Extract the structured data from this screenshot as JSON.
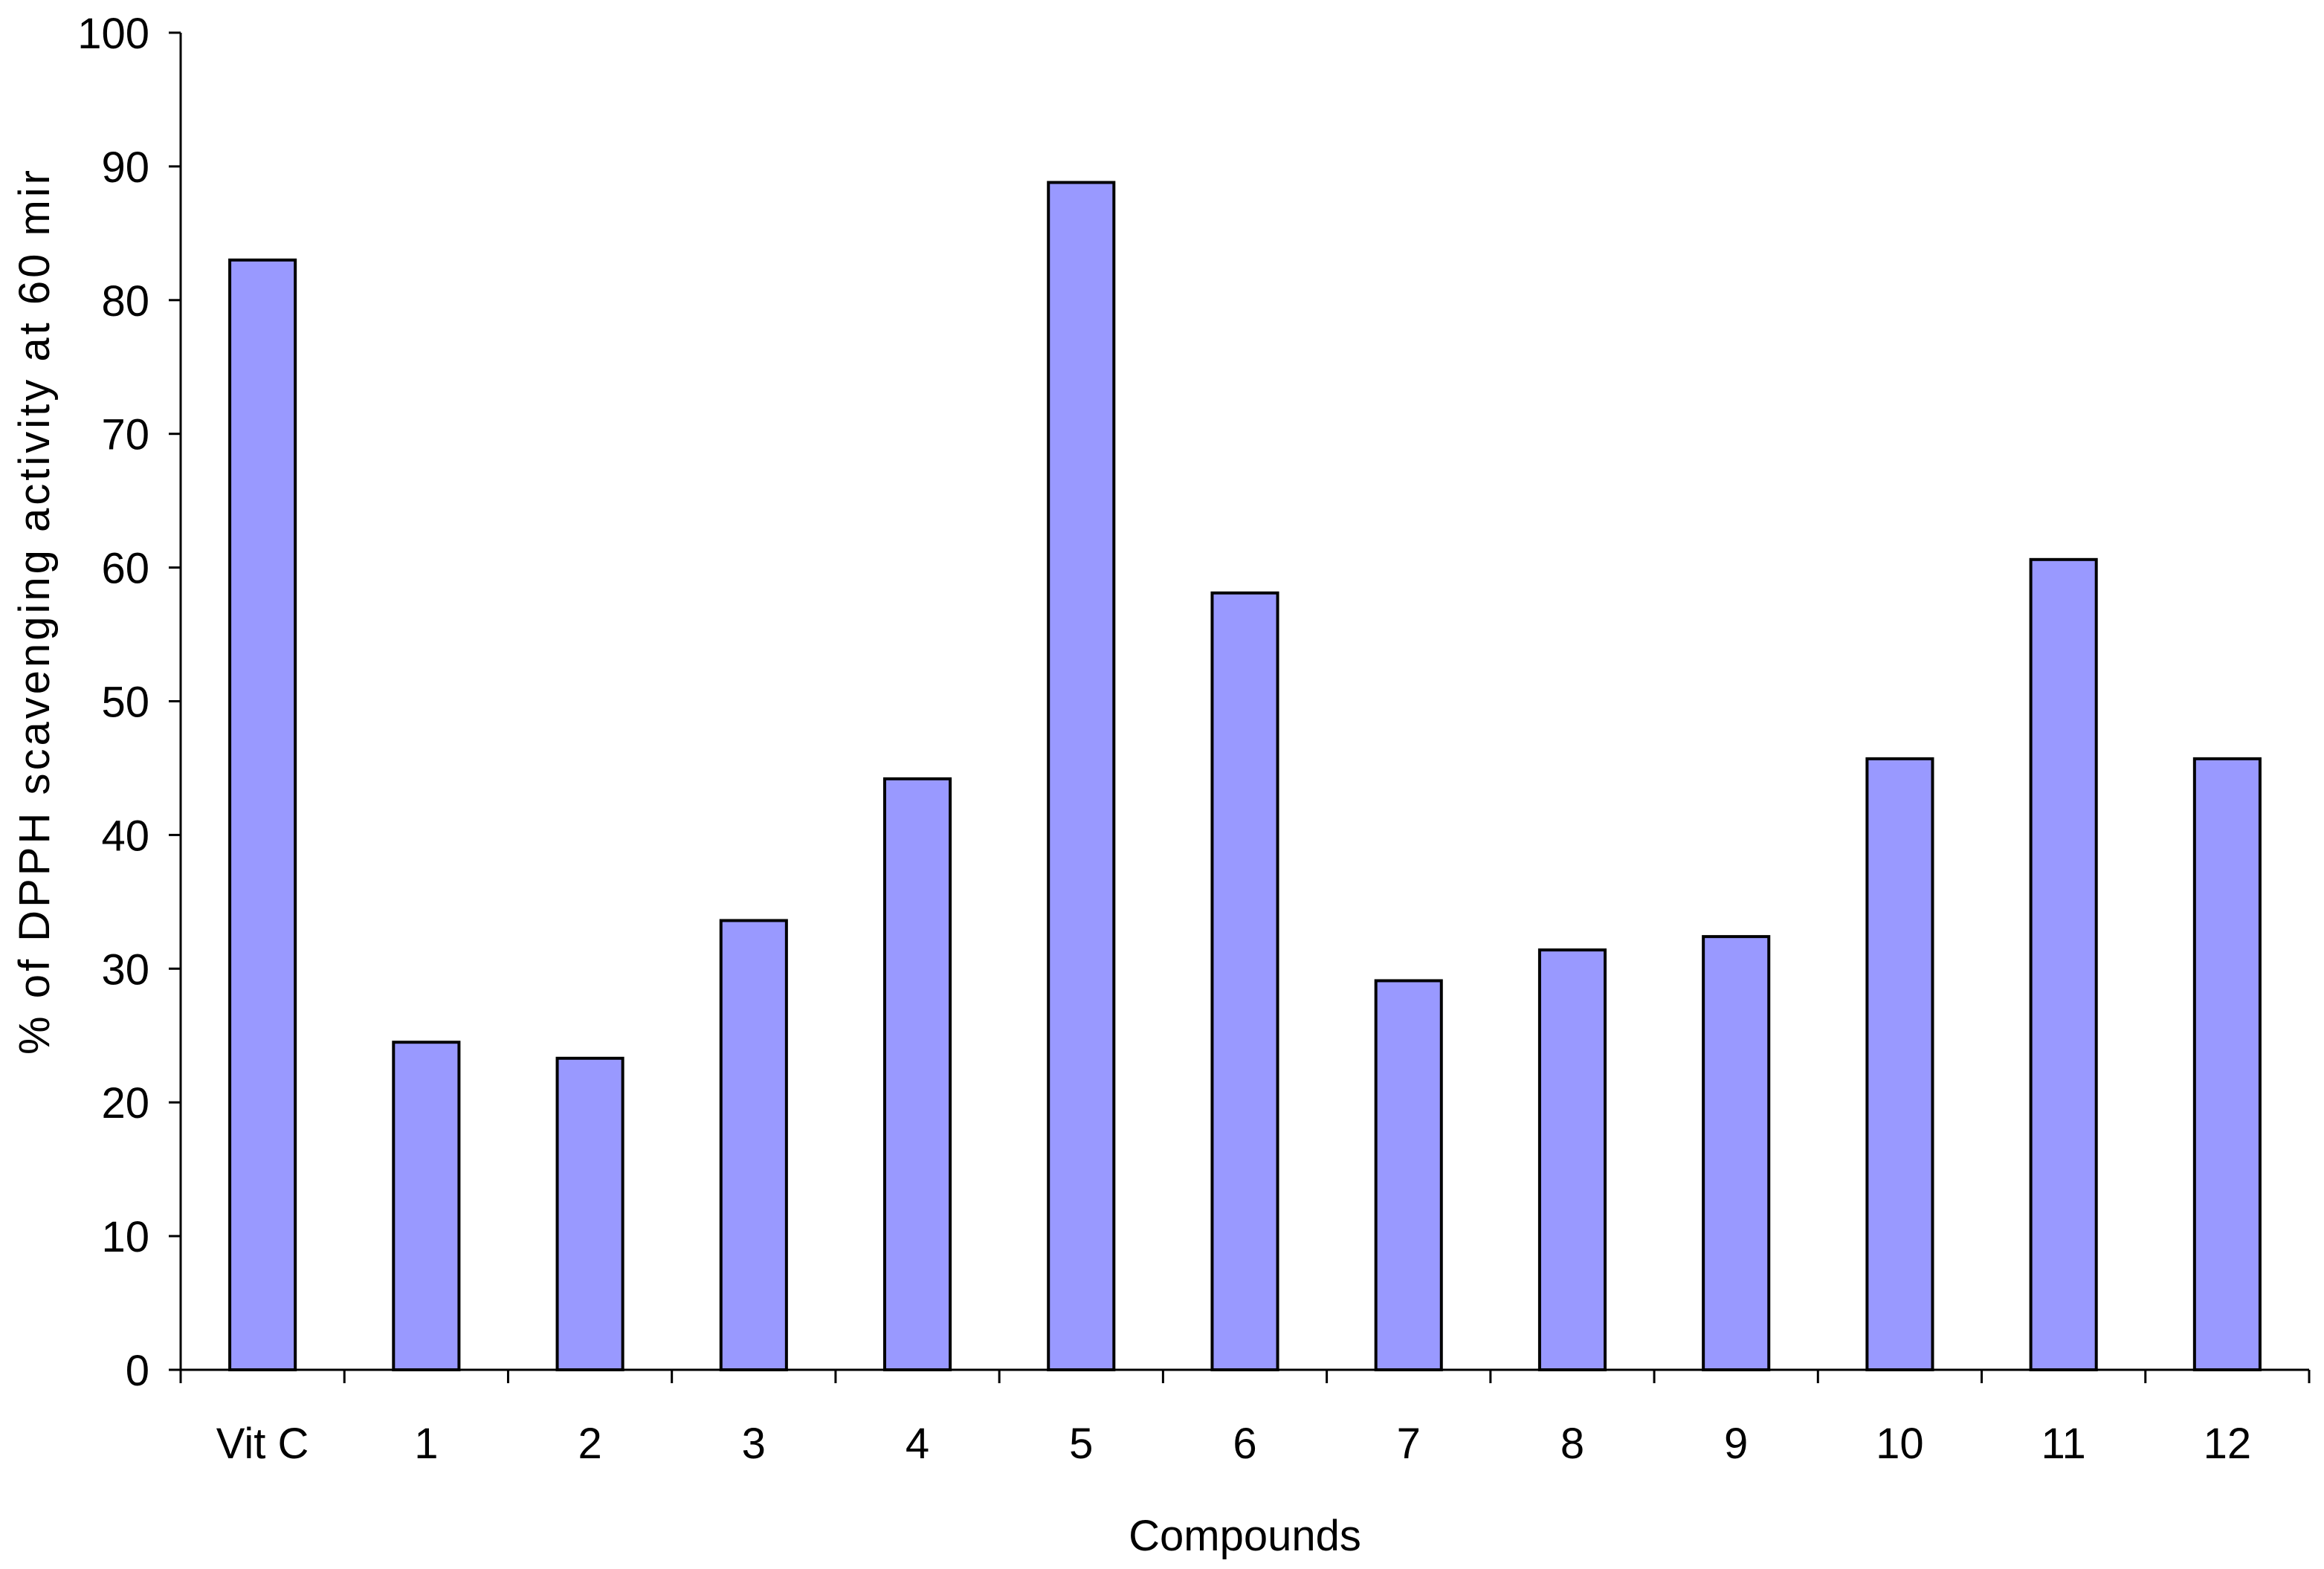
{
  "chart_data": {
    "type": "bar",
    "title": "",
    "xlabel": "Compounds",
    "ylabel": "% of DPPH scavenging activity at 60 mir",
    "categories": [
      "Vit C",
      "1",
      "2",
      "3",
      "4",
      "5",
      "6",
      "7",
      "8",
      "9",
      "10",
      "11",
      "12"
    ],
    "series": [
      {
        "values": [
          83,
          24.5,
          23.3,
          33.6,
          44.2,
          88.8,
          58.1,
          29.1,
          31.4,
          32.4,
          45.7,
          60.6,
          45.7
        ]
      }
    ],
    "ylim": [
      0,
      100
    ],
    "yticks": [
      0,
      10,
      20,
      30,
      40,
      50,
      60,
      70,
      80,
      90,
      100
    ],
    "grid": false,
    "legend": "none",
    "colors": {
      "bar_fill": "#9999ff",
      "bar_stroke": "#000000",
      "axis": "#000000"
    }
  }
}
